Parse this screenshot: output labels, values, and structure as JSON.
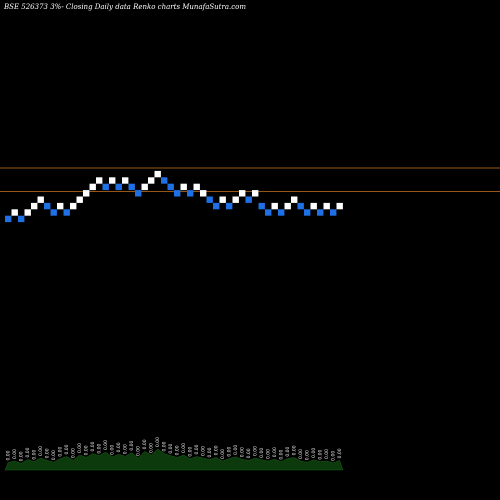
{
  "chart_data": {
    "type": "renko",
    "title": "BSE 526373 3%-  Closing Daily data  Renko  charts MunafaSutra.com",
    "colors": {
      "background": "#000000",
      "up_brick": "#ffffff",
      "down_brick": "#1f6fe5",
      "reference_line": "#c8741e",
      "volume": "#0d3a0d"
    },
    "reference_levels": [
      1.0,
      -0.6
    ],
    "bricks": [
      {
        "dir": "down",
        "level": -3
      },
      {
        "dir": "up",
        "level": -2
      },
      {
        "dir": "down",
        "level": -3
      },
      {
        "dir": "up",
        "level": -2
      },
      {
        "dir": "up",
        "level": -1
      },
      {
        "dir": "up",
        "level": 0
      },
      {
        "dir": "down",
        "level": -1
      },
      {
        "dir": "down",
        "level": -2
      },
      {
        "dir": "up",
        "level": -1
      },
      {
        "dir": "down",
        "level": -2
      },
      {
        "dir": "up",
        "level": -1
      },
      {
        "dir": "up",
        "level": 0
      },
      {
        "dir": "up",
        "level": 1
      },
      {
        "dir": "up",
        "level": 2
      },
      {
        "dir": "up",
        "level": 3
      },
      {
        "dir": "down",
        "level": 2
      },
      {
        "dir": "up",
        "level": 3
      },
      {
        "dir": "down",
        "level": 2
      },
      {
        "dir": "up",
        "level": 3
      },
      {
        "dir": "down",
        "level": 2
      },
      {
        "dir": "down",
        "level": 1
      },
      {
        "dir": "up",
        "level": 2
      },
      {
        "dir": "up",
        "level": 3
      },
      {
        "dir": "up",
        "level": 4
      },
      {
        "dir": "down",
        "level": 3
      },
      {
        "dir": "down",
        "level": 2
      },
      {
        "dir": "down",
        "level": 1
      },
      {
        "dir": "up",
        "level": 2
      },
      {
        "dir": "down",
        "level": 1
      },
      {
        "dir": "up",
        "level": 2
      },
      {
        "dir": "up",
        "level": 1
      },
      {
        "dir": "down",
        "level": 0
      },
      {
        "dir": "down",
        "level": -1
      },
      {
        "dir": "up",
        "level": 0
      },
      {
        "dir": "down",
        "level": -1
      },
      {
        "dir": "up",
        "level": 0
      },
      {
        "dir": "up",
        "level": 1
      },
      {
        "dir": "down",
        "level": 0
      },
      {
        "dir": "up",
        "level": 1
      },
      {
        "dir": "down",
        "level": -1
      },
      {
        "dir": "down",
        "level": -2
      },
      {
        "dir": "up",
        "level": -1
      },
      {
        "dir": "down",
        "level": -2
      },
      {
        "dir": "up",
        "level": -1
      },
      {
        "dir": "up",
        "level": 0
      },
      {
        "dir": "down",
        "level": -1
      },
      {
        "dir": "down",
        "level": -2
      },
      {
        "dir": "up",
        "level": -1
      },
      {
        "dir": "down",
        "level": -2
      },
      {
        "dir": "up",
        "level": -1
      },
      {
        "dir": "down",
        "level": -2
      },
      {
        "dir": "up",
        "level": -1
      }
    ],
    "volume": {
      "labels": [
        "0.00",
        "0.00",
        "0.00",
        "0.00",
        "0.00",
        "0.00",
        "0.00",
        "0.00",
        "0.00",
        "0.00",
        "0.00",
        "0.00",
        "0.00",
        "0.00",
        "0.00",
        "0.00",
        "0.00",
        "0.00",
        "0.00",
        "0.00",
        "0.00",
        "0.00",
        "0.00",
        "0.00",
        "0.00",
        "0.00",
        "0.00",
        "0.00",
        "0.00",
        "0.00",
        "0.00",
        "0.00",
        "0.00",
        "0.00",
        "0.00",
        "0.00",
        "0.00",
        "0.00",
        "0.00",
        "0.00",
        "0.00",
        "0.00",
        "0.00",
        "0.00",
        "0.00",
        "0.00",
        "0.00",
        "0.00",
        "0.00",
        "0.00",
        "0.00",
        "0.00"
      ],
      "values": [
        0.25,
        0.3,
        0.22,
        0.35,
        0.28,
        0.4,
        0.32,
        0.26,
        0.38,
        0.45,
        0.33,
        0.5,
        0.42,
        0.55,
        0.48,
        0.6,
        0.44,
        0.52,
        0.46,
        0.58,
        0.4,
        0.62,
        0.5,
        0.7,
        0.55,
        0.48,
        0.42,
        0.5,
        0.38,
        0.45,
        0.4,
        0.35,
        0.42,
        0.3,
        0.38,
        0.44,
        0.36,
        0.32,
        0.4,
        0.34,
        0.3,
        0.36,
        0.28,
        0.38,
        0.42,
        0.3,
        0.26,
        0.34,
        0.28,
        0.3,
        0.24,
        0.32
      ]
    }
  }
}
